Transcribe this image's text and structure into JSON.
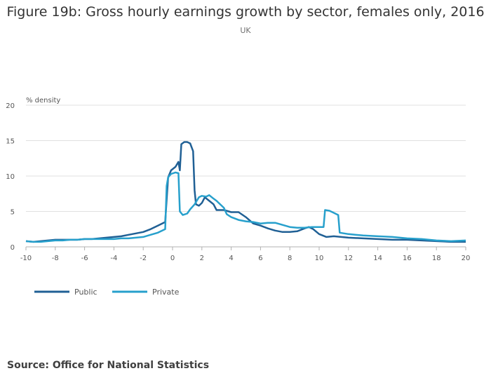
{
  "chart_data": {
    "type": "line",
    "title": "Figure 19b: Gross hourly earnings growth by sector, females only, 2016",
    "subtitle": "UK",
    "ylabel": "% density",
    "xlabel": "",
    "xlim": [
      -10,
      20
    ],
    "ylim": [
      0,
      20
    ],
    "x_ticks": [
      -10,
      -8,
      -6,
      -4,
      -2,
      0,
      2,
      4,
      6,
      8,
      10,
      12,
      14,
      16,
      18,
      20
    ],
    "y_ticks": [
      0,
      5,
      10,
      15,
      20
    ],
    "grid": true,
    "legend_position": "bottom-left",
    "series": [
      {
        "name": "Public",
        "color": "#206095",
        "points": [
          [
            -10,
            0.8
          ],
          [
            -9.5,
            0.7
          ],
          [
            -9,
            0.8
          ],
          [
            -8.5,
            0.9
          ],
          [
            -8,
            1.0
          ],
          [
            -7.5,
            1.0
          ],
          [
            -7,
            1.0
          ],
          [
            -6.5,
            1.0
          ],
          [
            -6,
            1.1
          ],
          [
            -5.5,
            1.1
          ],
          [
            -5,
            1.2
          ],
          [
            -4.5,
            1.3
          ],
          [
            -4,
            1.4
          ],
          [
            -3.5,
            1.5
          ],
          [
            -3,
            1.7
          ],
          [
            -2.5,
            1.9
          ],
          [
            -2,
            2.1
          ],
          [
            -1.5,
            2.5
          ],
          [
            -1,
            3.0
          ],
          [
            -0.5,
            3.5
          ],
          [
            -0.3,
            9.8
          ],
          [
            -0.1,
            10.8
          ],
          [
            0.2,
            11.3
          ],
          [
            0.4,
            12.0
          ],
          [
            0.5,
            10.8
          ],
          [
            0.6,
            14.5
          ],
          [
            0.8,
            14.8
          ],
          [
            1.0,
            14.8
          ],
          [
            1.2,
            14.6
          ],
          [
            1.4,
            13.5
          ],
          [
            1.5,
            8.0
          ],
          [
            1.6,
            6.0
          ],
          [
            1.8,
            5.8
          ],
          [
            2.0,
            6.2
          ],
          [
            2.2,
            7.0
          ],
          [
            2.5,
            6.5
          ],
          [
            2.8,
            6.0
          ],
          [
            3.0,
            5.2
          ],
          [
            3.5,
            5.2
          ],
          [
            4.0,
            4.9
          ],
          [
            4.5,
            4.9
          ],
          [
            5.0,
            4.2
          ],
          [
            5.5,
            3.3
          ],
          [
            6.0,
            3.0
          ],
          [
            6.5,
            2.6
          ],
          [
            7.0,
            2.3
          ],
          [
            7.5,
            2.1
          ],
          [
            8.0,
            2.1
          ],
          [
            8.5,
            2.2
          ],
          [
            9.0,
            2.6
          ],
          [
            9.3,
            2.8
          ],
          [
            9.6,
            2.5
          ],
          [
            10.0,
            1.8
          ],
          [
            10.5,
            1.4
          ],
          [
            11.0,
            1.5
          ],
          [
            11.5,
            1.4
          ],
          [
            12.0,
            1.3
          ],
          [
            13.0,
            1.2
          ],
          [
            14.0,
            1.1
          ],
          [
            15.0,
            1.0
          ],
          [
            16.0,
            1.0
          ],
          [
            17.0,
            0.9
          ],
          [
            18.0,
            0.8
          ],
          [
            19.0,
            0.7
          ],
          [
            20.0,
            0.7
          ]
        ]
      },
      {
        "name": "Private",
        "color": "#27a0cc",
        "points": [
          [
            -10,
            0.8
          ],
          [
            -9.5,
            0.7
          ],
          [
            -9,
            0.7
          ],
          [
            -8.5,
            0.8
          ],
          [
            -8,
            0.9
          ],
          [
            -7.5,
            0.9
          ],
          [
            -7,
            1.0
          ],
          [
            -6.5,
            1.0
          ],
          [
            -6,
            1.1
          ],
          [
            -5.5,
            1.1
          ],
          [
            -5,
            1.1
          ],
          [
            -4.5,
            1.1
          ],
          [
            -4,
            1.1
          ],
          [
            -3.5,
            1.2
          ],
          [
            -3,
            1.2
          ],
          [
            -2.5,
            1.3
          ],
          [
            -2,
            1.4
          ],
          [
            -1.5,
            1.7
          ],
          [
            -1,
            2.0
          ],
          [
            -0.5,
            2.5
          ],
          [
            -0.4,
            8.6
          ],
          [
            -0.3,
            9.8
          ],
          [
            -0.1,
            10.3
          ],
          [
            0.2,
            10.5
          ],
          [
            0.4,
            10.4
          ],
          [
            0.5,
            5.0
          ],
          [
            0.7,
            4.5
          ],
          [
            1.0,
            4.7
          ],
          [
            1.2,
            5.3
          ],
          [
            1.5,
            6.0
          ],
          [
            1.8,
            7.0
          ],
          [
            2.0,
            7.2
          ],
          [
            2.3,
            7.1
          ],
          [
            2.5,
            7.3
          ],
          [
            2.8,
            6.8
          ],
          [
            3.0,
            6.5
          ],
          [
            3.5,
            5.5
          ],
          [
            3.7,
            4.6
          ],
          [
            4.0,
            4.2
          ],
          [
            4.5,
            3.8
          ],
          [
            5.0,
            3.6
          ],
          [
            5.5,
            3.5
          ],
          [
            6.0,
            3.3
          ],
          [
            6.5,
            3.4
          ],
          [
            7.0,
            3.4
          ],
          [
            7.5,
            3.1
          ],
          [
            8.0,
            2.8
          ],
          [
            8.5,
            2.7
          ],
          [
            9.0,
            2.7
          ],
          [
            9.5,
            2.8
          ],
          [
            10.0,
            2.8
          ],
          [
            10.3,
            2.8
          ],
          [
            10.4,
            5.2
          ],
          [
            10.7,
            5.1
          ],
          [
            11.0,
            4.8
          ],
          [
            11.3,
            4.5
          ],
          [
            11.4,
            2.0
          ],
          [
            12.0,
            1.8
          ],
          [
            13.0,
            1.6
          ],
          [
            14.0,
            1.5
          ],
          [
            15.0,
            1.4
          ],
          [
            16.0,
            1.2
          ],
          [
            17.0,
            1.1
          ],
          [
            18.0,
            0.9
          ],
          [
            19.0,
            0.8
          ],
          [
            20.0,
            0.9
          ]
        ]
      }
    ]
  },
  "source": "Source: Office for National Statistics"
}
